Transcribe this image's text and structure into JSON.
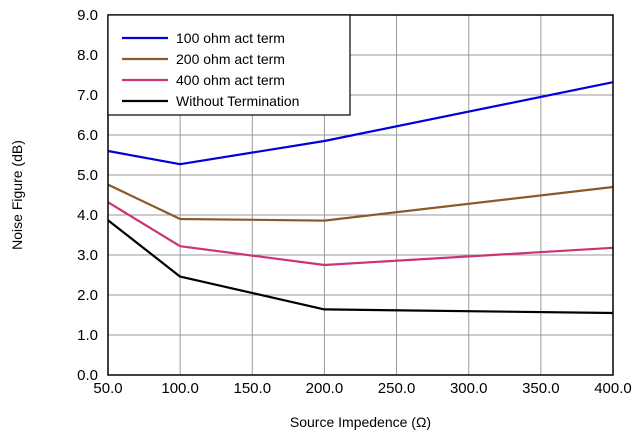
{
  "chart_data": {
    "type": "line",
    "title": "",
    "xlabel": "Source Impedence (Ω)",
    "ylabel": "Noise Figure (dB)",
    "xlim": [
      50,
      400
    ],
    "ylim": [
      0,
      9
    ],
    "xticks": [
      50,
      100,
      150,
      200,
      250,
      300,
      350,
      400
    ],
    "xtick_labels": [
      "50.0",
      "100.0",
      "150.0",
      "200.0",
      "250.0",
      "300.0",
      "350.0",
      "400.0"
    ],
    "yticks": [
      0,
      1,
      2,
      3,
      4,
      5,
      6,
      7,
      8,
      9
    ],
    "ytick_labels": [
      "0.0",
      "1.0",
      "2.0",
      "3.0",
      "4.0",
      "5.0",
      "6.0",
      "7.0",
      "8.0",
      "9.0"
    ],
    "grid": true,
    "legend_position": "top-left",
    "series": [
      {
        "name": "100 ohm act term",
        "color": "#0000e0",
        "x": [
          50,
          100,
          200,
          400
        ],
        "y": [
          5.6,
          5.27,
          5.85,
          7.32
        ]
      },
      {
        "name": "200 ohm act term",
        "color": "#8b5a2b",
        "x": [
          50,
          100,
          200,
          400
        ],
        "y": [
          4.76,
          3.9,
          3.86,
          4.7
        ]
      },
      {
        "name": "400 ohm act term",
        "color": "#cc3377",
        "x": [
          50,
          100,
          200,
          400
        ],
        "y": [
          4.32,
          3.22,
          2.75,
          3.18
        ]
      },
      {
        "name": "Without Termination",
        "color": "#000000",
        "x": [
          50,
          100,
          200,
          400
        ],
        "y": [
          3.87,
          2.46,
          1.64,
          1.55
        ]
      }
    ]
  }
}
